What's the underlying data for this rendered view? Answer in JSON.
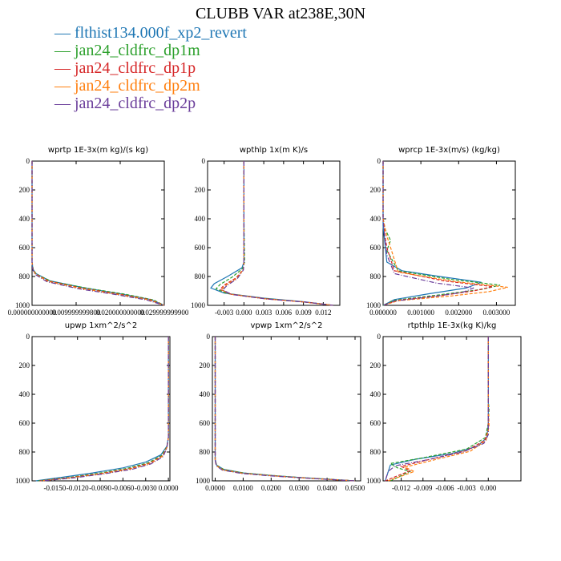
{
  "title": "CLUBB VAR at238E,30N",
  "legend": [
    {
      "name": "flthist134.000f_xp2_revert",
      "color": "#1f77b4",
      "dash": ""
    },
    {
      "name": "jan24_cldfrc_dp1m",
      "color": "#2ca02c",
      "dash": "4,2"
    },
    {
      "name": "jan24_cldfrc_dp1p",
      "color": "#d62728",
      "dash": "4,2"
    },
    {
      "name": "jan24_cldfrc_dp2m",
      "color": "#ff7f0e",
      "dash": "4,2"
    },
    {
      "name": "jan24_cldfrc_dp2p",
      "color": "#6a3d9a",
      "dash": "6,2,1,2"
    }
  ],
  "chart_data": [
    {
      "type": "line",
      "title": "wprtp  1E-3x(m kg)/(s kg)",
      "xlim": [
        0,
        0.03
      ],
      "ylim": [
        0,
        1000
      ],
      "y_reversed": true,
      "xticks": [
        0,
        0.01,
        0.02,
        0.03
      ],
      "xticklabels": [
        "0.000000000000",
        "0.009999999800",
        "0.020000000000",
        "0.029999999900"
      ],
      "yticks": [
        0,
        200,
        400,
        600,
        800,
        1000
      ],
      "series": [
        {
          "x": [
            0,
            0,
            0.0002,
            0.0009,
            0.004,
            0.012,
            0.02,
            0.027,
            0.03
          ],
          "y": [
            0,
            700,
            750,
            780,
            830,
            880,
            920,
            960,
            1000
          ]
        },
        {
          "x": [
            0,
            0,
            0.0003,
            0.001,
            0.0045,
            0.013,
            0.021,
            0.0275,
            0.03
          ],
          "y": [
            0,
            700,
            755,
            785,
            835,
            884,
            922,
            962,
            1000
          ]
        },
        {
          "x": [
            0,
            0,
            0.0002,
            0.0008,
            0.0038,
            0.0115,
            0.0195,
            0.0268,
            0.03
          ],
          "y": [
            0,
            705,
            752,
            782,
            832,
            882,
            921,
            961,
            1000
          ]
        },
        {
          "x": [
            0,
            0,
            0.0002,
            0.0008,
            0.0036,
            0.011,
            0.019,
            0.0265,
            0.03
          ],
          "y": [
            0,
            705,
            754,
            784,
            834,
            883,
            922,
            962,
            1000
          ]
        },
        {
          "x": [
            0,
            0,
            0.0002,
            0.0007,
            0.0034,
            0.0105,
            0.0185,
            0.026,
            0.03
          ],
          "y": [
            0,
            708,
            756,
            786,
            836,
            885,
            923,
            963,
            1000
          ]
        }
      ]
    },
    {
      "type": "line",
      "title": "wpthlp   1x(m K)/s",
      "xlim": [
        -0.0055,
        0.0145
      ],
      "ylim": [
        0,
        1000
      ],
      "y_reversed": true,
      "xticks": [
        -0.003,
        0,
        0.003,
        0.006,
        0.009,
        0.012
      ],
      "xticklabels": [
        "-0.003",
        "0.000",
        "0.003",
        "0.006",
        "0.009",
        "0.012"
      ],
      "yticks": [
        0,
        200,
        400,
        600,
        800,
        1000
      ],
      "series": [
        {
          "x": [
            0,
            0,
            0,
            -0.0003,
            -0.0025,
            -0.0045,
            -0.005,
            -0.003,
            0.003,
            0.009,
            0.0135
          ],
          "y": [
            0,
            400,
            700,
            740,
            800,
            850,
            880,
            915,
            950,
            975,
            1000
          ]
        },
        {
          "x": [
            0,
            0,
            0.0001,
            -0.0002,
            -0.0018,
            -0.0036,
            -0.0042,
            -0.0026,
            0.003,
            0.009,
            0.0135
          ],
          "y": [
            0,
            400,
            700,
            745,
            805,
            855,
            885,
            918,
            952,
            976,
            1000
          ]
        },
        {
          "x": [
            0,
            0,
            0,
            -0.0001,
            -0.0012,
            -0.003,
            -0.0036,
            -0.002,
            0.0032,
            0.0092,
            0.0135
          ],
          "y": [
            0,
            400,
            700,
            750,
            810,
            860,
            890,
            922,
            954,
            977,
            1000
          ]
        },
        {
          "x": [
            0,
            0,
            0,
            -0.0001,
            -0.0011,
            -0.0028,
            -0.0034,
            -0.0019,
            0.0033,
            0.0093,
            0.0135
          ],
          "y": [
            0,
            400,
            700,
            752,
            812,
            862,
            892,
            924,
            955,
            978,
            1000
          ]
        },
        {
          "x": [
            0,
            0,
            0,
            -0.0001,
            -0.001,
            -0.0026,
            -0.0032,
            -0.0018,
            0.0034,
            0.0094,
            0.0135
          ],
          "y": [
            0,
            400,
            700,
            755,
            815,
            864,
            894,
            925,
            956,
            978,
            1000
          ]
        }
      ]
    },
    {
      "type": "line",
      "title": "wprcp   1E-3x(m/s) (kg/kg)",
      "xlim": [
        0,
        0.0035
      ],
      "ylim": [
        0,
        1000
      ],
      "y_reversed": true,
      "xticks": [
        0,
        0.001,
        0.002,
        0.003
      ],
      "xticklabels": [
        "0.000000",
        "0.001000",
        "0.002000",
        "0.003000"
      ],
      "yticks": [
        0,
        200,
        400,
        600,
        800,
        1000
      ],
      "series": [
        {
          "x": [
            0,
            0,
            0.0001,
            0.0005,
            0.0015,
            0.0026,
            0.0022,
            0.0012,
            0.0003,
            0
          ],
          "y": [
            0,
            450,
            700,
            760,
            800,
            840,
            880,
            920,
            960,
            1000
          ]
        },
        {
          "x": [
            0,
            0,
            5e-05,
            0.0002,
            0.0001,
            0.0004,
            0.0018,
            0.0031,
            0.0026,
            0.0014,
            0.0003,
            0
          ],
          "y": [
            0,
            400,
            470,
            550,
            620,
            760,
            820,
            860,
            890,
            930,
            965,
            1000
          ]
        },
        {
          "x": [
            0,
            0,
            5e-05,
            0.0001,
            0.0003,
            0.0016,
            0.0029,
            0.0024,
            0.0016,
            0.0004,
            0
          ],
          "y": [
            0,
            400,
            520,
            600,
            760,
            830,
            870,
            900,
            930,
            965,
            1000
          ]
        },
        {
          "x": [
            0,
            0,
            0.0001,
            0.0002,
            0.0004,
            0.0019,
            0.0033,
            0.0028,
            0.0018,
            0.0004,
            0
          ],
          "y": [
            0,
            400,
            520,
            600,
            770,
            835,
            875,
            905,
            935,
            968,
            1000
          ]
        },
        {
          "x": [
            0,
            0,
            5e-05,
            0.0001,
            0.0003,
            0.0014,
            0.0024,
            0.0021,
            0.0013,
            0.0003,
            0
          ],
          "y": [
            0,
            400,
            550,
            650,
            780,
            845,
            880,
            910,
            940,
            970,
            1000
          ]
        }
      ]
    },
    {
      "type": "line",
      "title": "upwp   1xm^2/s^2",
      "xlim": [
        -0.018,
        0.0002
      ],
      "ylim": [
        0,
        1000
      ],
      "y_reversed": true,
      "xticks": [
        -0.015,
        -0.012,
        -0.009,
        -0.006,
        -0.003,
        0
      ],
      "xticklabels": [
        "-0.0150",
        "-0.0120",
        "-0.0090",
        "-0.0060",
        "-0.0030",
        "0.0000"
      ],
      "yticks": [
        0,
        200,
        400,
        600,
        800,
        1000
      ],
      "series": [
        {
          "x": [
            0,
            0,
            -0.0002,
            -0.001,
            -0.003,
            -0.006,
            -0.01,
            -0.014,
            -0.0175
          ],
          "y": [
            0,
            700,
            760,
            820,
            870,
            910,
            945,
            975,
            1000
          ]
        },
        {
          "x": [
            0,
            0,
            -0.0002,
            -0.0009,
            -0.0027,
            -0.0055,
            -0.0093,
            -0.0132,
            -0.0172
          ],
          "y": [
            0,
            700,
            765,
            825,
            875,
            914,
            948,
            977,
            1000
          ]
        },
        {
          "x": [
            0,
            0,
            -0.0002,
            -0.0008,
            -0.0025,
            -0.0052,
            -0.009,
            -0.013,
            -0.017
          ],
          "y": [
            0,
            700,
            768,
            828,
            878,
            916,
            950,
            978,
            1000
          ]
        },
        {
          "x": [
            0,
            0,
            -0.0002,
            -0.0008,
            -0.0024,
            -0.005,
            -0.0088,
            -0.0128,
            -0.0168
          ],
          "y": [
            0,
            700,
            770,
            830,
            880,
            918,
            951,
            979,
            1000
          ]
        },
        {
          "x": [
            0,
            0,
            -0.0002,
            -0.0007,
            -0.0023,
            -0.0048,
            -0.0086,
            -0.0126,
            -0.0166
          ],
          "y": [
            0,
            700,
            772,
            832,
            882,
            920,
            952,
            980,
            1000
          ]
        }
      ]
    },
    {
      "type": "line",
      "title": "vpwp   1xm^2/s^2",
      "xlim": [
        -0.001,
        0.052
      ],
      "ylim": [
        0,
        1000
      ],
      "y_reversed": true,
      "xticks": [
        0,
        0.01,
        0.02,
        0.03,
        0.04,
        0.05
      ],
      "xticklabels": [
        "0.0000",
        "0.0100",
        "0.0200",
        "0.0300",
        "0.0400",
        "0.0500"
      ],
      "yticks": [
        0,
        200,
        400,
        600,
        800,
        1000
      ],
      "series": [
        {
          "x": [
            0,
            0,
            0.0005,
            0.003,
            0.01,
            0.02,
            0.03,
            0.04,
            0.05
          ],
          "y": [
            0,
            850,
            890,
            920,
            945,
            962,
            976,
            988,
            1000
          ]
        },
        {
          "x": [
            0,
            0,
            0.0005,
            0.0032,
            0.0105,
            0.0205,
            0.0305,
            0.0405,
            0.05
          ],
          "y": [
            0,
            852,
            892,
            922,
            946,
            963,
            977,
            988,
            1000
          ]
        },
        {
          "x": [
            0,
            0,
            0.0004,
            0.0028,
            0.0098,
            0.0198,
            0.0298,
            0.0398,
            0.05
          ],
          "y": [
            0,
            855,
            894,
            924,
            947,
            964,
            977,
            989,
            1000
          ]
        },
        {
          "x": [
            0,
            0,
            0.0004,
            0.0027,
            0.0097,
            0.0197,
            0.0297,
            0.0397,
            0.05
          ],
          "y": [
            0,
            856,
            895,
            925,
            948,
            964,
            978,
            989,
            1000
          ]
        },
        {
          "x": [
            0,
            0,
            0.0004,
            0.0026,
            0.0095,
            0.0195,
            0.0295,
            0.0395,
            0.05
          ],
          "y": [
            0,
            858,
            896,
            926,
            949,
            965,
            978,
            989,
            1000
          ]
        }
      ]
    },
    {
      "type": "line",
      "title": "rtpthlp   1E-3x(kg K)/kg",
      "xlim": [
        -0.0145,
        0.0045
      ],
      "ylim": [
        0,
        1000
      ],
      "y_reversed": true,
      "xticks": [
        -0.012,
        -0.009,
        -0.006,
        -0.003,
        0
      ],
      "xticklabels": [
        "-0.012",
        "-0.009",
        "-0.006",
        "-0.003",
        "0.000"
      ],
      "yticks": [
        0,
        200,
        400,
        600,
        800,
        1000
      ],
      "series": [
        {
          "x": [
            0,
            0,
            -0.0002,
            -0.0015,
            -0.005,
            -0.01,
            -0.0135,
            -0.0142
          ],
          "y": [
            0,
            600,
            700,
            760,
            810,
            850,
            890,
            1000
          ]
        },
        {
          "x": [
            0,
            0,
            0.0001,
            0,
            -0.0004,
            -0.003,
            -0.009,
            -0.0135,
            -0.0125,
            -0.0108,
            -0.0135
          ],
          "y": [
            0,
            450,
            500,
            600,
            700,
            780,
            840,
            880,
            910,
            935,
            1000
          ]
        },
        {
          "x": [
            0,
            0,
            0,
            -0.0005,
            -0.003,
            -0.008,
            -0.012,
            -0.0108,
            -0.0142
          ],
          "y": [
            0,
            500,
            650,
            720,
            790,
            850,
            900,
            930,
            1000
          ]
        },
        {
          "x": [
            0,
            0,
            0.0001,
            -0.0003,
            -0.0025,
            -0.0075,
            -0.0115,
            -0.0102,
            -0.0138
          ],
          "y": [
            0,
            480,
            620,
            720,
            795,
            855,
            905,
            935,
            1000
          ]
        },
        {
          "x": [
            0,
            0,
            0,
            -0.0006,
            -0.0035,
            -0.0085,
            -0.0128,
            -0.0138,
            -0.0142
          ],
          "y": [
            0,
            520,
            680,
            740,
            800,
            855,
            895,
            935,
            1000
          ]
        }
      ]
    }
  ]
}
